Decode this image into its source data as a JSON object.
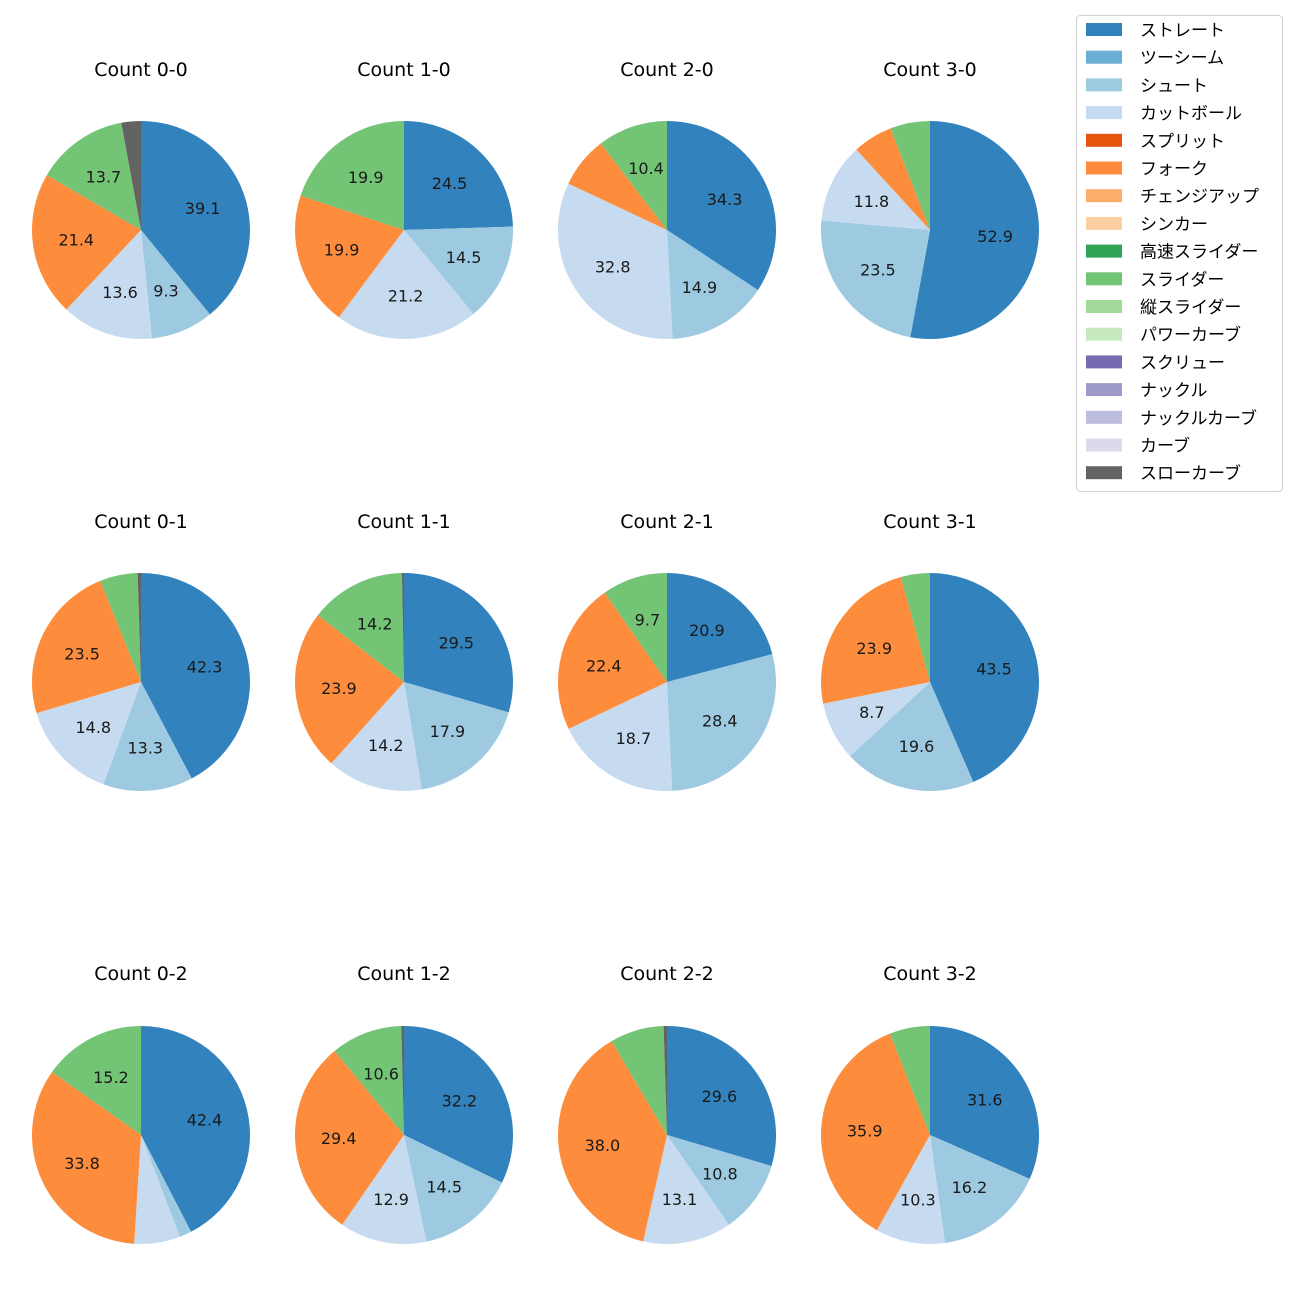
{
  "chart_data": {
    "type": "pie",
    "legend": {
      "placement": "top-right",
      "entries": [
        {
          "name": "ストレート",
          "color": "#3182bd"
        },
        {
          "name": "ツーシーム",
          "color": "#6baed6"
        },
        {
          "name": "シュート",
          "color": "#9ecae1"
        },
        {
          "name": "カットボール",
          "color": "#c6dbef"
        },
        {
          "name": "スプリット",
          "color": "#e6550d"
        },
        {
          "name": "フォーク",
          "color": "#fd8d3c"
        },
        {
          "name": "チェンジアップ",
          "color": "#fdae6b"
        },
        {
          "name": "シンカー",
          "color": "#fdd0a2"
        },
        {
          "name": "高速スライダー",
          "color": "#31a354"
        },
        {
          "name": "スライダー",
          "color": "#74c476"
        },
        {
          "name": "縦スライダー",
          "color": "#a1d99b"
        },
        {
          "name": "パワーカーブ",
          "color": "#c7e9c0"
        },
        {
          "name": "スクリュー",
          "color": "#756bb1"
        },
        {
          "name": "ナックル",
          "color": "#9e9ac8"
        },
        {
          "name": "ナックルカーブ",
          "color": "#bcbddc"
        },
        {
          "name": "カーブ",
          "color": "#dadaeb"
        },
        {
          "name": "スローカーブ",
          "color": "#636363"
        }
      ]
    },
    "charts": [
      {
        "title": "Count 0-0",
        "slices": [
          {
            "pitch": "ストレート",
            "value": 39.1,
            "label": "39.1"
          },
          {
            "pitch": "シュート",
            "value": 9.3,
            "label": "9.3"
          },
          {
            "pitch": "カットボール",
            "value": 13.6,
            "label": "13.6"
          },
          {
            "pitch": "フォーク",
            "value": 21.4,
            "label": "21.4"
          },
          {
            "pitch": "スライダー",
            "value": 13.7,
            "label": "13.7"
          },
          {
            "pitch": "スローカーブ",
            "value": 2.9,
            "label": ""
          }
        ]
      },
      {
        "title": "Count 1-0",
        "slices": [
          {
            "pitch": "ストレート",
            "value": 24.5,
            "label": "24.5"
          },
          {
            "pitch": "シュート",
            "value": 14.5,
            "label": "14.5"
          },
          {
            "pitch": "カットボール",
            "value": 21.2,
            "label": "21.2"
          },
          {
            "pitch": "フォーク",
            "value": 19.9,
            "label": "19.9"
          },
          {
            "pitch": "スライダー",
            "value": 19.9,
            "label": "19.9"
          }
        ]
      },
      {
        "title": "Count 2-0",
        "slices": [
          {
            "pitch": "ストレート",
            "value": 34.3,
            "label": "34.3"
          },
          {
            "pitch": "シュート",
            "value": 14.9,
            "label": "14.9"
          },
          {
            "pitch": "カットボール",
            "value": 32.8,
            "label": "32.8"
          },
          {
            "pitch": "フォーク",
            "value": 7.6,
            "label": ""
          },
          {
            "pitch": "スライダー",
            "value": 10.4,
            "label": "10.4"
          }
        ]
      },
      {
        "title": "Count 3-0",
        "slices": [
          {
            "pitch": "ストレート",
            "value": 52.9,
            "label": "52.9"
          },
          {
            "pitch": "シュート",
            "value": 23.5,
            "label": "23.5"
          },
          {
            "pitch": "カットボール",
            "value": 11.8,
            "label": "11.8"
          },
          {
            "pitch": "フォーク",
            "value": 5.9,
            "label": ""
          },
          {
            "pitch": "スライダー",
            "value": 5.9,
            "label": ""
          }
        ]
      },
      {
        "title": "Count 0-1",
        "slices": [
          {
            "pitch": "ストレート",
            "value": 42.3,
            "label": "42.3"
          },
          {
            "pitch": "シュート",
            "value": 13.3,
            "label": "13.3"
          },
          {
            "pitch": "カットボール",
            "value": 14.8,
            "label": "14.8"
          },
          {
            "pitch": "フォーク",
            "value": 23.5,
            "label": "23.5"
          },
          {
            "pitch": "スライダー",
            "value": 5.6,
            "label": ""
          },
          {
            "pitch": "スローカーブ",
            "value": 0.5,
            "label": ""
          }
        ]
      },
      {
        "title": "Count 1-1",
        "slices": [
          {
            "pitch": "ストレート",
            "value": 29.5,
            "label": "29.5"
          },
          {
            "pitch": "シュート",
            "value": 17.9,
            "label": "17.9"
          },
          {
            "pitch": "カットボール",
            "value": 14.2,
            "label": "14.2"
          },
          {
            "pitch": "フォーク",
            "value": 23.9,
            "label": "23.9"
          },
          {
            "pitch": "スライダー",
            "value": 14.2,
            "label": "14.2"
          },
          {
            "pitch": "スローカーブ",
            "value": 0.3,
            "label": ""
          }
        ]
      },
      {
        "title": "Count 2-1",
        "slices": [
          {
            "pitch": "ストレート",
            "value": 20.9,
            "label": "20.9"
          },
          {
            "pitch": "シュート",
            "value": 28.4,
            "label": "28.4"
          },
          {
            "pitch": "カットボール",
            "value": 18.7,
            "label": "18.7"
          },
          {
            "pitch": "フォーク",
            "value": 22.4,
            "label": "22.4"
          },
          {
            "pitch": "スライダー",
            "value": 9.7,
            "label": "9.7"
          }
        ]
      },
      {
        "title": "Count 3-1",
        "slices": [
          {
            "pitch": "ストレート",
            "value": 43.5,
            "label": "43.5"
          },
          {
            "pitch": "シュート",
            "value": 19.6,
            "label": "19.6"
          },
          {
            "pitch": "カットボール",
            "value": 8.7,
            "label": "8.7"
          },
          {
            "pitch": "フォーク",
            "value": 23.9,
            "label": "23.9"
          },
          {
            "pitch": "スライダー",
            "value": 4.3,
            "label": ""
          }
        ]
      },
      {
        "title": "Count 0-2",
        "slices": [
          {
            "pitch": "ストレート",
            "value": 42.4,
            "label": "42.4"
          },
          {
            "pitch": "シュート",
            "value": 1.8,
            "label": ""
          },
          {
            "pitch": "カットボール",
            "value": 6.8,
            "label": ""
          },
          {
            "pitch": "フォーク",
            "value": 33.8,
            "label": "33.8"
          },
          {
            "pitch": "スライダー",
            "value": 15.2,
            "label": "15.2"
          }
        ]
      },
      {
        "title": "Count 1-2",
        "slices": [
          {
            "pitch": "ストレート",
            "value": 32.2,
            "label": "32.2"
          },
          {
            "pitch": "シュート",
            "value": 14.5,
            "label": "14.5"
          },
          {
            "pitch": "カットボール",
            "value": 12.9,
            "label": "12.9"
          },
          {
            "pitch": "フォーク",
            "value": 29.4,
            "label": "29.4"
          },
          {
            "pitch": "スライダー",
            "value": 10.6,
            "label": "10.6"
          },
          {
            "pitch": "スローカーブ",
            "value": 0.4,
            "label": ""
          }
        ]
      },
      {
        "title": "Count 2-2",
        "slices": [
          {
            "pitch": "ストレート",
            "value": 29.6,
            "label": "29.6"
          },
          {
            "pitch": "シュート",
            "value": 10.8,
            "label": "10.8"
          },
          {
            "pitch": "カットボール",
            "value": 13.1,
            "label": "13.1"
          },
          {
            "pitch": "フォーク",
            "value": 38.0,
            "label": "38.0"
          },
          {
            "pitch": "スライダー",
            "value": 8.0,
            "label": ""
          },
          {
            "pitch": "スローカーブ",
            "value": 0.5,
            "label": ""
          }
        ]
      },
      {
        "title": "Count 3-2",
        "slices": [
          {
            "pitch": "ストレート",
            "value": 31.6,
            "label": "31.6"
          },
          {
            "pitch": "シュート",
            "value": 16.2,
            "label": "16.2"
          },
          {
            "pitch": "カットボール",
            "value": 10.3,
            "label": "10.3"
          },
          {
            "pitch": "フォーク",
            "value": 35.9,
            "label": "35.9"
          },
          {
            "pitch": "スライダー",
            "value": 6.0,
            "label": ""
          }
        ]
      }
    ]
  }
}
